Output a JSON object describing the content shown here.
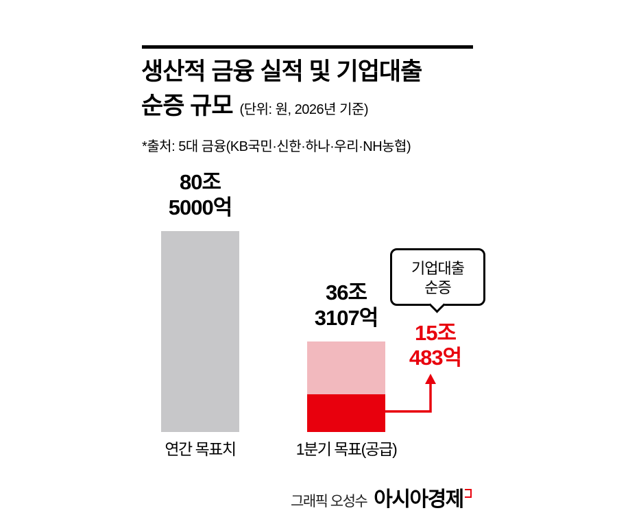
{
  "header": {
    "title_line1": "생산적 금융 실적 및 기업대출",
    "title_line2": "순증 규모",
    "unit_note": "(단위: 원, 2026년 기준)",
    "source_note": "*출처: 5대 금융(KB국민·신한·하나·우리·NH농협)"
  },
  "chart_data": {
    "type": "bar",
    "title": "생산적 금융 실적 및 기업대출 순증 규모",
    "unit_note": "(단위: 원, 2026년 기준)",
    "categories": [
      "연간 목표치",
      "1분기 목표(공급)"
    ],
    "values_trillion_won": [
      80.5,
      36.3107
    ],
    "value_labels": [
      [
        "80조",
        "5000억"
      ],
      [
        "36조",
        "3107억"
      ]
    ],
    "highlight": {
      "label_line1": "기업대출",
      "label_line2": "순증",
      "value_line1": "15조",
      "value_line2": "483억",
      "value_trillion_won": 15.0483
    },
    "ylim": [
      0,
      80.5
    ],
    "colors": {
      "annual_bar": "#c7c7c9",
      "q1_bar": "#f2b9be",
      "highlight_bar": "#e8000d",
      "highlight_text": "#e8000d"
    }
  },
  "footer": {
    "credit": "그래픽 오성수",
    "logo": "아시아경제"
  }
}
